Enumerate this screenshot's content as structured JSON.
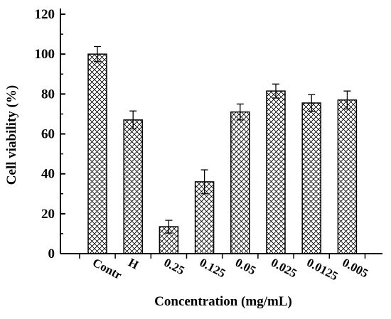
{
  "chart_data": {
    "type": "bar",
    "title": "",
    "xlabel": "Concentration (mg/mL)",
    "ylabel": "Cell viability (%)",
    "ylim": [
      0,
      120
    ],
    "yticks": [
      "0",
      "20",
      "40",
      "60",
      "80",
      "100",
      "120"
    ],
    "categories": [
      "Contr",
      "H",
      "0.25",
      "0.125",
      "0.05",
      "0.025",
      "0.0125",
      "0.005"
    ],
    "values": [
      100,
      67,
      13.5,
      36,
      71,
      81.5,
      75.5,
      77
    ],
    "errors": [
      3.8,
      4.5,
      3.2,
      6,
      4,
      3.5,
      4.2,
      4.5
    ],
    "bar_pattern": "crosshatch",
    "grid": false,
    "legend": "none"
  }
}
